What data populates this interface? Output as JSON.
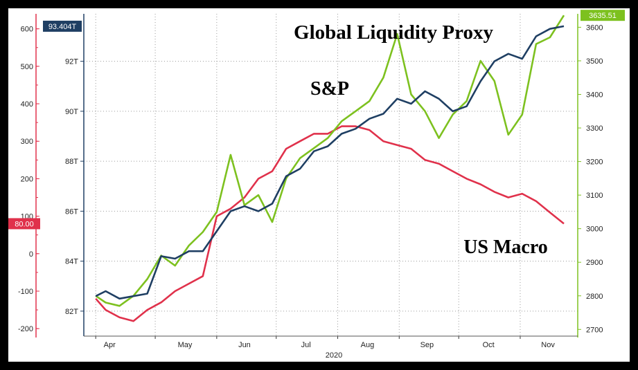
{
  "colors": {
    "liquidity": "#1f3f63",
    "sp": "#7dc11f",
    "macro": "#e0314b",
    "grid": "#9a9a9a"
  },
  "chart_data": {
    "type": "line",
    "title": "Global Liquidity Proxy",
    "xlabel": "2020",
    "x_ticks": [
      "Apr",
      "May",
      "Jun",
      "Jul",
      "Aug",
      "Sep",
      "Oct",
      "Nov"
    ],
    "grid": true,
    "axes": {
      "macro": {
        "position": "left-outer",
        "ylim": [
          -220,
          640
        ],
        "ticks": [
          -200,
          -100,
          0,
          100,
          200,
          300,
          400,
          500,
          600
        ]
      },
      "liquidity": {
        "position": "left-inner",
        "ylim": [
          81.0,
          93.9
        ],
        "tick_values": [
          82,
          84,
          86,
          88,
          90,
          92
        ],
        "ticks": [
          "82T",
          "84T",
          "86T",
          "88T",
          "90T",
          "92T"
        ]
      },
      "sp": {
        "position": "right",
        "ylim": [
          2680,
          3640
        ],
        "ticks": [
          2700,
          2800,
          2900,
          3000,
          3100,
          3200,
          3300,
          3400,
          3500,
          3600
        ]
      }
    },
    "series": [
      {
        "name": "Global Liquidity Proxy",
        "axis": "liquidity",
        "color": "#1f3f63",
        "last_label": "93.404T",
        "points": [
          [
            "04-01",
            82.6
          ],
          [
            "04-06",
            82.8
          ],
          [
            "04-13",
            82.5
          ],
          [
            "04-20",
            82.6
          ],
          [
            "04-27",
            82.7
          ],
          [
            "05-04",
            84.2
          ],
          [
            "05-11",
            84.1
          ],
          [
            "05-18",
            84.4
          ],
          [
            "05-25",
            84.4
          ],
          [
            "06-01",
            85.2
          ],
          [
            "06-08",
            86.0
          ],
          [
            "06-15",
            86.2
          ],
          [
            "06-22",
            86.0
          ],
          [
            "06-29",
            86.3
          ],
          [
            "07-06",
            87.4
          ],
          [
            "07-13",
            87.7
          ],
          [
            "07-20",
            88.4
          ],
          [
            "07-27",
            88.6
          ],
          [
            "08-03",
            89.1
          ],
          [
            "08-10",
            89.3
          ],
          [
            "08-17",
            89.7
          ],
          [
            "08-24",
            89.9
          ],
          [
            "08-31",
            90.5
          ],
          [
            "09-07",
            90.3
          ],
          [
            "09-14",
            90.8
          ],
          [
            "09-21",
            90.5
          ],
          [
            "09-28",
            90.0
          ],
          [
            "10-05",
            90.2
          ],
          [
            "10-12",
            91.2
          ],
          [
            "10-19",
            92.0
          ],
          [
            "10-26",
            92.3
          ],
          [
            "11-02",
            92.1
          ],
          [
            "11-09",
            93.0
          ],
          [
            "11-16",
            93.3
          ],
          [
            "11-23",
            93.404
          ]
        ]
      },
      {
        "name": "S&P",
        "axis": "sp",
        "color": "#7dc11f",
        "last_label": "3635.51",
        "points": [
          [
            "04-01",
            2800
          ],
          [
            "04-06",
            2780
          ],
          [
            "04-13",
            2770
          ],
          [
            "04-20",
            2800
          ],
          [
            "04-27",
            2850
          ],
          [
            "05-04",
            2920
          ],
          [
            "05-11",
            2890
          ],
          [
            "05-18",
            2950
          ],
          [
            "05-25",
            2990
          ],
          [
            "06-01",
            3050
          ],
          [
            "06-08",
            3220
          ],
          [
            "06-15",
            3070
          ],
          [
            "06-22",
            3100
          ],
          [
            "06-29",
            3020
          ],
          [
            "07-06",
            3150
          ],
          [
            "07-13",
            3210
          ],
          [
            "07-20",
            3240
          ],
          [
            "07-27",
            3270
          ],
          [
            "08-03",
            3320
          ],
          [
            "08-10",
            3350
          ],
          [
            "08-17",
            3380
          ],
          [
            "08-24",
            3450
          ],
          [
            "08-31",
            3580
          ],
          [
            "09-07",
            3400
          ],
          [
            "09-14",
            3350
          ],
          [
            "09-21",
            3270
          ],
          [
            "09-28",
            3340
          ],
          [
            "10-05",
            3380
          ],
          [
            "10-12",
            3500
          ],
          [
            "10-19",
            3440
          ],
          [
            "10-26",
            3280
          ],
          [
            "11-02",
            3340
          ],
          [
            "11-09",
            3550
          ],
          [
            "11-16",
            3570
          ],
          [
            "11-23",
            3635.51
          ]
        ]
      },
      {
        "name": "US Macro",
        "axis": "macro",
        "color": "#e0314b",
        "last_label": "80.00",
        "points": [
          [
            "04-01",
            -120
          ],
          [
            "04-06",
            -150
          ],
          [
            "04-13",
            -170
          ],
          [
            "04-20",
            -180
          ],
          [
            "04-27",
            -150
          ],
          [
            "05-04",
            -130
          ],
          [
            "05-11",
            -100
          ],
          [
            "05-18",
            -80
          ],
          [
            "05-25",
            -60
          ],
          [
            "06-01",
            100
          ],
          [
            "06-08",
            120
          ],
          [
            "06-15",
            150
          ],
          [
            "06-22",
            200
          ],
          [
            "06-29",
            220
          ],
          [
            "07-06",
            280
          ],
          [
            "07-13",
            300
          ],
          [
            "07-20",
            320
          ],
          [
            "07-27",
            320
          ],
          [
            "08-03",
            340
          ],
          [
            "08-10",
            340
          ],
          [
            "08-17",
            330
          ],
          [
            "08-24",
            300
          ],
          [
            "08-31",
            290
          ],
          [
            "09-07",
            280
          ],
          [
            "09-14",
            250
          ],
          [
            "09-21",
            240
          ],
          [
            "09-28",
            220
          ],
          [
            "10-05",
            200
          ],
          [
            "10-12",
            185
          ],
          [
            "10-19",
            165
          ],
          [
            "10-26",
            150
          ],
          [
            "11-02",
            160
          ],
          [
            "11-09",
            140
          ],
          [
            "11-16",
            110
          ],
          [
            "11-23",
            80
          ]
        ]
      }
    ],
    "annotations": [
      "S&P",
      "US Macro"
    ]
  }
}
